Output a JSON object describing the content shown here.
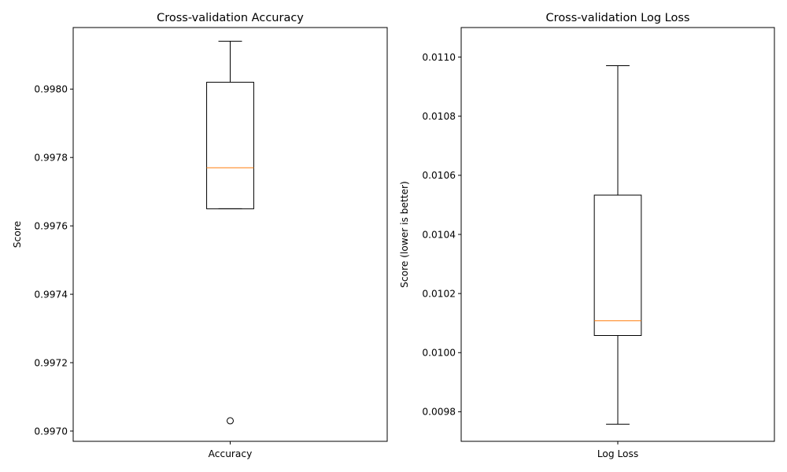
{
  "chart_data": [
    {
      "type": "box",
      "title": "Cross-validation Accuracy",
      "xlabel": "",
      "ylabel": "Score",
      "ylim": [
        0.99697,
        0.99818
      ],
      "yticks": [
        0.997,
        0.9972,
        0.9974,
        0.9976,
        0.9978,
        0.998
      ],
      "ytick_labels": [
        "0.9970",
        "0.9972",
        "0.9974",
        "0.9976",
        "0.9978",
        "0.9980"
      ],
      "categories": [
        "Accuracy"
      ],
      "boxes": [
        {
          "name": "Accuracy",
          "whisker_low": 0.99765,
          "q1": 0.99765,
          "median": 0.99777,
          "q3": 0.99802,
          "whisker_high": 0.99814,
          "outliers": [
            0.99703
          ]
        }
      ]
    },
    {
      "type": "box",
      "title": "Cross-validation Log Loss",
      "xlabel": "",
      "ylabel": "Score (lower is better)",
      "ylim": [
        0.0097,
        0.0111
      ],
      "yticks": [
        0.0098,
        0.01,
        0.0102,
        0.0104,
        0.0106,
        0.0108,
        0.011
      ],
      "ytick_labels": [
        "0.0098",
        "0.0100",
        "0.0102",
        "0.0104",
        "0.0106",
        "0.0108",
        "0.0110"
      ],
      "categories": [
        "Log Loss"
      ],
      "boxes": [
        {
          "name": "Log Loss",
          "whisker_low": 0.009758,
          "q1": 0.010058,
          "median": 0.010108,
          "q3": 0.010533,
          "whisker_high": 0.010971,
          "outliers": []
        }
      ]
    }
  ],
  "colors": {
    "median": "#ff7f0e",
    "box": "#000000",
    "axes": "#000000"
  }
}
